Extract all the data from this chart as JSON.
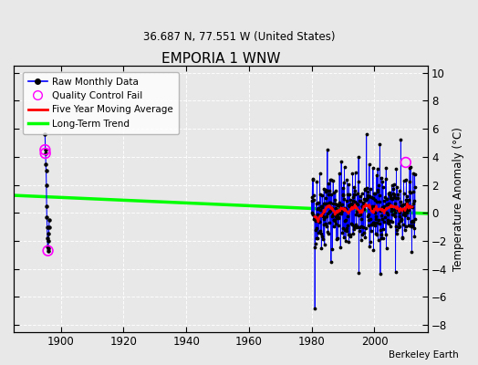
{
  "title": "EMPORIA 1 WNW",
  "subtitle": "36.687 N, 77.551 W (United States)",
  "ylabel": "Temperature Anomaly (°C)",
  "credit": "Berkeley Earth",
  "xlim": [
    1885,
    2017
  ],
  "ylim": [
    -8.5,
    10.5
  ],
  "yticks": [
    -8,
    -6,
    -4,
    -2,
    0,
    2,
    4,
    6,
    8,
    10
  ],
  "xticks": [
    1900,
    1920,
    1940,
    1960,
    1980,
    2000
  ],
  "bg_color": "#e8e8e8",
  "early_years": [
    1895.0,
    1895.08,
    1895.17,
    1895.25,
    1895.33,
    1895.42,
    1895.5,
    1895.58,
    1895.67,
    1895.75,
    1895.83,
    1895.92,
    1896.0,
    1896.08,
    1896.17,
    1896.25,
    1896.33
  ],
  "early_vals": [
    5.6,
    4.5,
    4.25,
    3.5,
    3.0,
    2.0,
    0.5,
    -0.3,
    -1.0,
    -1.8,
    -2.4,
    -2.7,
    -2.5,
    -2.0,
    -1.5,
    -1.0,
    -0.5
  ],
  "qc_fail_points": [
    [
      1895.0,
      4.5
    ],
    [
      1895.08,
      4.25
    ],
    [
      1895.92,
      -2.7
    ]
  ],
  "qc_fail_dense": [
    2010.0,
    3.6
  ],
  "trend_x": [
    1885,
    2017
  ],
  "trend_y": [
    1.25,
    -0.05
  ],
  "dense_start": 1980,
  "dense_end": 2013,
  "dense_n": 396,
  "seed": 42,
  "red_window": 30,
  "red_trim": 10
}
